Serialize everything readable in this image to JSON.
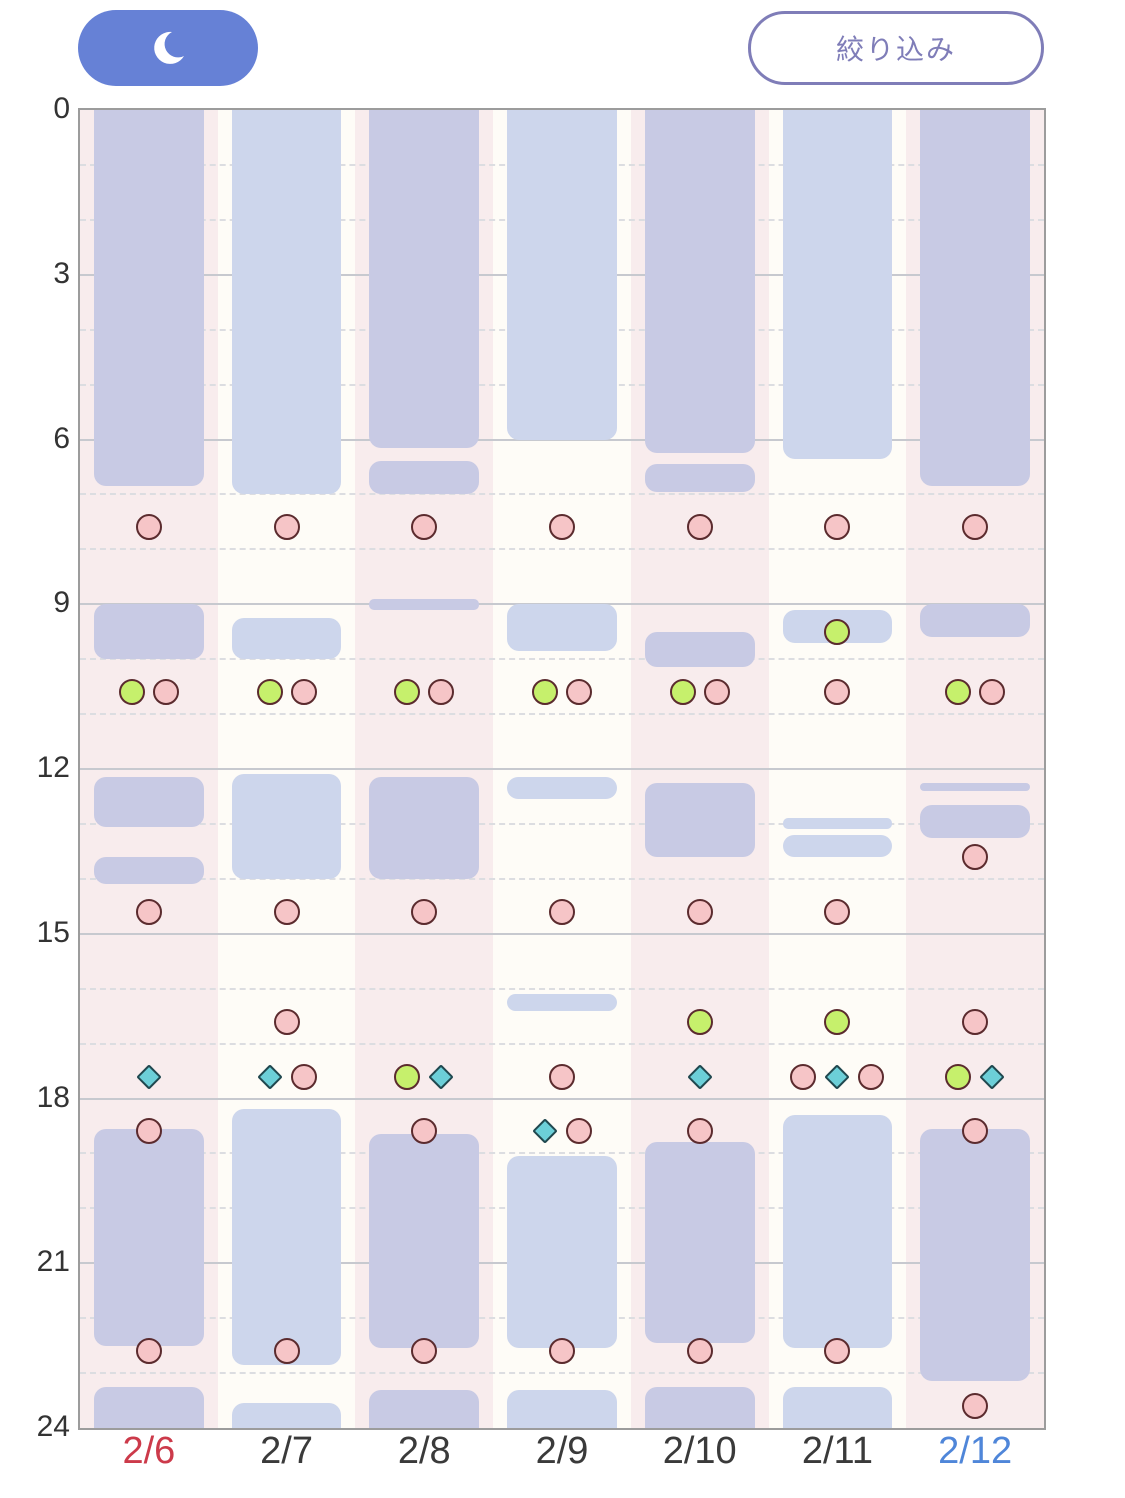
{
  "toolbar": {
    "night_icon": "moon-icon",
    "filter_label": "絞り込み",
    "night_color": "#6681d6",
    "filter_color": "#7f7db8"
  },
  "y_axis": {
    "min": 0,
    "max": 24,
    "labels": [
      "0",
      "3",
      "6",
      "9",
      "12",
      "15",
      "18",
      "21",
      "24"
    ]
  },
  "colors": {
    "weekend_bg": "#f8eced",
    "weekday_bg": "#fefcf7",
    "block_dark": "#c8cae4",
    "block_light": "#cdd6ec",
    "dot_pink": "#f6c5c7",
    "dot_green": "#c6f06c",
    "diamond_teal": "#6ccfd8",
    "label_red": "#cc3a4a",
    "label_blue": "#4f86d9",
    "label_default": "#3a3a3a"
  },
  "days": [
    {
      "label": "2/6",
      "label_color": "red",
      "bg": "weekend",
      "tone": "dark",
      "blocks": [
        [
          0,
          6.85
        ],
        [
          9.0,
          10.0
        ],
        [
          12.15,
          13.05
        ],
        [
          13.6,
          14.1
        ],
        [
          18.55,
          22.5
        ],
        [
          23.25,
          24
        ]
      ],
      "markers": [
        {
          "t": 7.6,
          "k": [
            "pink"
          ]
        },
        {
          "t": 10.6,
          "k": [
            "green",
            "pink"
          ]
        },
        {
          "t": 14.6,
          "k": [
            "pink"
          ]
        },
        {
          "t": 17.6,
          "k": [
            "diamond"
          ]
        },
        {
          "t": 18.6,
          "k": [
            "pink"
          ]
        },
        {
          "t": 22.6,
          "k": [
            "pink"
          ]
        }
      ]
    },
    {
      "label": "2/7",
      "label_color": "default",
      "bg": "weekday",
      "tone": "light",
      "blocks": [
        [
          0,
          7.0
        ],
        [
          9.25,
          10.0
        ],
        [
          12.1,
          14.0
        ],
        [
          18.2,
          22.85
        ],
        [
          23.55,
          24
        ]
      ],
      "markers": [
        {
          "t": 7.6,
          "k": [
            "pink"
          ]
        },
        {
          "t": 10.6,
          "k": [
            "green",
            "pink"
          ]
        },
        {
          "t": 14.6,
          "k": [
            "pink"
          ]
        },
        {
          "t": 16.6,
          "k": [
            "pink"
          ]
        },
        {
          "t": 17.6,
          "k": [
            "diamond",
            "pink"
          ]
        },
        {
          "t": 22.6,
          "k": [
            "pink"
          ]
        }
      ]
    },
    {
      "label": "2/8",
      "label_color": "default",
      "bg": "weekend",
      "tone": "dark",
      "blocks": [
        [
          0,
          6.15
        ],
        [
          6.4,
          7.0
        ],
        [
          8.9,
          9.1
        ],
        [
          12.15,
          14.0
        ],
        [
          18.65,
          22.55
        ],
        [
          23.3,
          24
        ]
      ],
      "markers": [
        {
          "t": 7.6,
          "k": [
            "pink"
          ]
        },
        {
          "t": 10.6,
          "k": [
            "green",
            "pink"
          ]
        },
        {
          "t": 14.6,
          "k": [
            "pink"
          ]
        },
        {
          "t": 17.6,
          "k": [
            "green",
            "diamond"
          ]
        },
        {
          "t": 18.6,
          "k": [
            "pink"
          ]
        },
        {
          "t": 22.6,
          "k": [
            "pink"
          ]
        }
      ]
    },
    {
      "label": "2/9",
      "label_color": "default",
      "bg": "weekday",
      "tone": "light",
      "blocks": [
        [
          0,
          6.0
        ],
        [
          9.0,
          9.85
        ],
        [
          12.15,
          12.55
        ],
        [
          16.1,
          16.4
        ],
        [
          19.05,
          22.55
        ],
        [
          23.3,
          24
        ]
      ],
      "markers": [
        {
          "t": 7.6,
          "k": [
            "pink"
          ]
        },
        {
          "t": 10.6,
          "k": [
            "green",
            "pink"
          ]
        },
        {
          "t": 14.6,
          "k": [
            "pink"
          ]
        },
        {
          "t": 17.6,
          "k": [
            "pink"
          ]
        },
        {
          "t": 18.6,
          "k": [
            "diamond",
            "pink"
          ]
        },
        {
          "t": 22.6,
          "k": [
            "pink"
          ]
        }
      ]
    },
    {
      "label": "2/10",
      "label_color": "default",
      "bg": "weekend",
      "tone": "dark",
      "blocks": [
        [
          0,
          6.25
        ],
        [
          6.45,
          6.95
        ],
        [
          9.5,
          10.15
        ],
        [
          12.25,
          13.6
        ],
        [
          18.8,
          22.45
        ],
        [
          23.25,
          24
        ]
      ],
      "markers": [
        {
          "t": 7.6,
          "k": [
            "pink"
          ]
        },
        {
          "t": 10.6,
          "k": [
            "green",
            "pink"
          ]
        },
        {
          "t": 14.6,
          "k": [
            "pink"
          ]
        },
        {
          "t": 16.6,
          "k": [
            "green"
          ]
        },
        {
          "t": 17.6,
          "k": [
            "diamond"
          ]
        },
        {
          "t": 18.6,
          "k": [
            "pink"
          ]
        },
        {
          "t": 22.6,
          "k": [
            "pink"
          ]
        }
      ]
    },
    {
      "label": "2/11",
      "label_color": "default",
      "bg": "weekday",
      "tone": "light",
      "blocks": [
        [
          0,
          6.35
        ],
        [
          9.1,
          9.7
        ],
        [
          12.9,
          13.1
        ],
        [
          13.2,
          13.6
        ],
        [
          18.3,
          22.55
        ],
        [
          23.25,
          24
        ]
      ],
      "markers": [
        {
          "t": 7.6,
          "k": [
            "pink"
          ]
        },
        {
          "t": 9.5,
          "k": [
            "green"
          ]
        },
        {
          "t": 10.6,
          "k": [
            "pink"
          ]
        },
        {
          "t": 14.6,
          "k": [
            "pink"
          ]
        },
        {
          "t": 16.6,
          "k": [
            "green"
          ]
        },
        {
          "t": 17.6,
          "k": [
            "pink",
            "diamond",
            "pink"
          ]
        },
        {
          "t": 22.6,
          "k": [
            "pink"
          ]
        }
      ]
    },
    {
      "label": "2/12",
      "label_color": "blue",
      "bg": "weekend",
      "tone": "dark",
      "blocks": [
        [
          0,
          6.85
        ],
        [
          9.0,
          9.6
        ],
        [
          12.25,
          12.4
        ],
        [
          12.65,
          13.25
        ],
        [
          18.55,
          23.15
        ]
      ],
      "markers": [
        {
          "t": 7.6,
          "k": [
            "pink"
          ]
        },
        {
          "t": 10.6,
          "k": [
            "green",
            "pink"
          ]
        },
        {
          "t": 13.6,
          "k": [
            "pink"
          ]
        },
        {
          "t": 16.6,
          "k": [
            "pink"
          ]
        },
        {
          "t": 17.6,
          "k": [
            "green",
            "diamond"
          ]
        },
        {
          "t": 18.6,
          "k": [
            "pink"
          ]
        },
        {
          "t": 23.6,
          "k": [
            "pink"
          ]
        }
      ]
    }
  ]
}
